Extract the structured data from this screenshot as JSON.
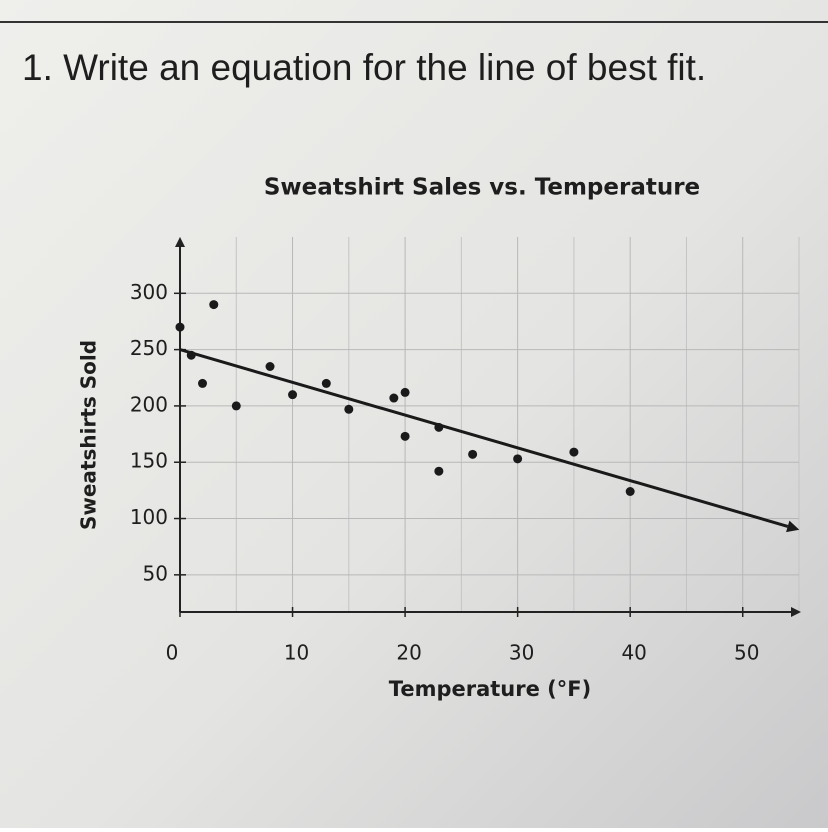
{
  "question": "1. Write an equation for the line of best fit.",
  "chart_data": {
    "type": "scatter",
    "title": "Sweatshirt Sales vs. Temperature",
    "x_label": "Temperature (°F)",
    "y_label": "Sweatshirts Sold",
    "x": [
      0,
      1,
      2,
      3,
      5,
      8,
      10,
      13,
      15,
      19,
      20,
      20,
      23,
      23,
      26,
      30,
      35,
      40
    ],
    "values": [
      270,
      245,
      220,
      290,
      200,
      235,
      210,
      220,
      197,
      207,
      212,
      173,
      181,
      142,
      157,
      153,
      159,
      124
    ],
    "color": "#1a1a1a",
    "trend_line": {
      "x": [
        0,
        54
      ],
      "values": [
        250,
        93
      ],
      "color": "#1a1a1a"
    },
    "xlim": [
      0,
      55
    ],
    "ylim": [
      17,
      350
    ],
    "xticks": [
      0,
      10,
      20,
      30,
      40,
      50
    ],
    "yticks": [
      50,
      100,
      150,
      200,
      250,
      300
    ],
    "xminorticks": [
      5,
      15,
      25,
      35,
      45,
      55
    ],
    "grid": true
  }
}
